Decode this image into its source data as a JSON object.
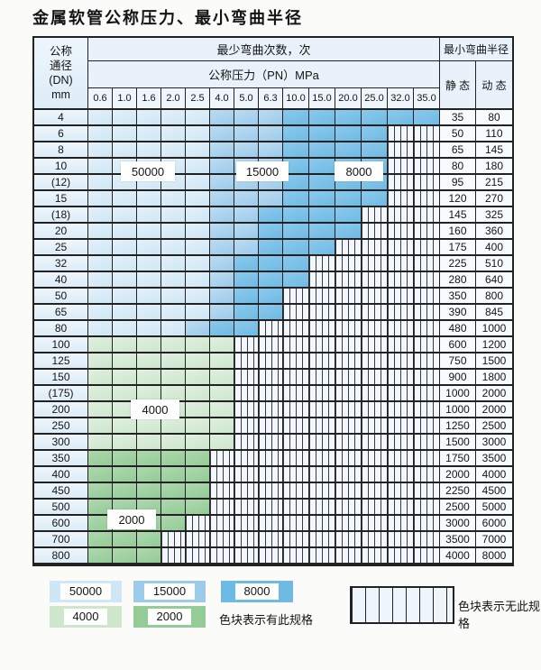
{
  "title": "金属软管公称压力、最小弯曲半径",
  "table": {
    "dn_header": [
      "公称",
      "通径",
      "(DN)",
      "mm"
    ],
    "bend_header": "最少弯曲次数，次",
    "pressure_header": "公称压力（PN）MPa",
    "radius_header": "最小弯曲半径",
    "static_label": "静 态",
    "dynamic_label": "动 态",
    "pressures": [
      "0.6",
      "1.0",
      "1.6",
      "2.0",
      "2.5",
      "4.0",
      "5.0",
      "6.3",
      "10.0",
      "15.0",
      "20.0",
      "25.0",
      "32.0",
      "35.0"
    ],
    "zone_order": [
      "50000",
      "15000",
      "8000",
      "4000",
      "2000"
    ],
    "rows": [
      {
        "dn": "4",
        "zones": [
          5,
          3,
          6,
          0,
          0
        ],
        "static": "35",
        "dynamic": "80"
      },
      {
        "dn": "6",
        "zones": [
          5,
          3,
          4,
          0,
          0
        ],
        "static": "50",
        "dynamic": "110"
      },
      {
        "dn": "8",
        "zones": [
          5,
          3,
          4,
          0,
          0
        ],
        "static": "65",
        "dynamic": "145"
      },
      {
        "dn": "10",
        "zones": [
          5,
          3,
          4,
          0,
          0
        ],
        "static": "80",
        "dynamic": "180"
      },
      {
        "dn": "(12)",
        "zones": [
          5,
          3,
          4,
          0,
          0
        ],
        "static": "95",
        "dynamic": "215"
      },
      {
        "dn": "15",
        "zones": [
          5,
          3,
          4,
          0,
          0
        ],
        "static": "120",
        "dynamic": "270"
      },
      {
        "dn": "(18)",
        "zones": [
          5,
          2,
          4,
          0,
          0
        ],
        "static": "145",
        "dynamic": "325"
      },
      {
        "dn": "20",
        "zones": [
          5,
          2,
          4,
          0,
          0
        ],
        "static": "160",
        "dynamic": "360"
      },
      {
        "dn": "25",
        "zones": [
          5,
          2,
          3,
          0,
          0
        ],
        "static": "175",
        "dynamic": "400"
      },
      {
        "dn": "32",
        "zones": [
          5,
          1,
          3,
          0,
          0
        ],
        "static": "225",
        "dynamic": "510"
      },
      {
        "dn": "40",
        "zones": [
          5,
          1,
          3,
          0,
          0
        ],
        "static": "280",
        "dynamic": "640"
      },
      {
        "dn": "50",
        "zones": [
          5,
          1,
          2,
          0,
          0
        ],
        "static": "350",
        "dynamic": "800"
      },
      {
        "dn": "65",
        "zones": [
          5,
          1,
          2,
          0,
          0
        ],
        "static": "390",
        "dynamic": "845"
      },
      {
        "dn": "80",
        "zones": [
          4,
          1,
          2,
          0,
          0
        ],
        "static": "480",
        "dynamic": "1000"
      },
      {
        "dn": "100",
        "zones": [
          0,
          0,
          0,
          6,
          0
        ],
        "static": "600",
        "dynamic": "1200"
      },
      {
        "dn": "125",
        "zones": [
          0,
          0,
          0,
          6,
          0
        ],
        "static": "750",
        "dynamic": "1500"
      },
      {
        "dn": "150",
        "zones": [
          0,
          0,
          0,
          6,
          0
        ],
        "static": "900",
        "dynamic": "1800"
      },
      {
        "dn": "(175)",
        "zones": [
          0,
          0,
          0,
          6,
          0
        ],
        "static": "1000",
        "dynamic": "2000"
      },
      {
        "dn": "200",
        "zones": [
          0,
          0,
          0,
          6,
          0
        ],
        "static": "1000",
        "dynamic": "2000"
      },
      {
        "dn": "250",
        "zones": [
          0,
          0,
          0,
          6,
          0
        ],
        "static": "1250",
        "dynamic": "2500"
      },
      {
        "dn": "300",
        "zones": [
          0,
          0,
          0,
          6,
          0
        ],
        "static": "1500",
        "dynamic": "3000"
      },
      {
        "dn": "350",
        "zones": [
          0,
          0,
          0,
          0,
          5
        ],
        "static": "1750",
        "dynamic": "3500"
      },
      {
        "dn": "400",
        "zones": [
          0,
          0,
          0,
          0,
          5
        ],
        "static": "2000",
        "dynamic": "4000"
      },
      {
        "dn": "450",
        "zones": [
          0,
          0,
          0,
          0,
          5
        ],
        "static": "2250",
        "dynamic": "4500"
      },
      {
        "dn": "500",
        "zones": [
          0,
          0,
          0,
          0,
          5
        ],
        "static": "2500",
        "dynamic": "5000"
      },
      {
        "dn": "600",
        "zones": [
          0,
          0,
          0,
          0,
          4
        ],
        "static": "3000",
        "dynamic": "6000"
      },
      {
        "dn": "700",
        "zones": [
          0,
          0,
          0,
          0,
          3
        ],
        "static": "3500",
        "dynamic": "7000"
      },
      {
        "dn": "800",
        "zones": [
          0,
          0,
          0,
          0,
          3
        ],
        "static": "4000",
        "dynamic": "8000"
      }
    ]
  },
  "overlay": {
    "b50000": "50000",
    "b15000": "15000",
    "b8000": "8000",
    "b4000": "4000",
    "b2000": "2000"
  },
  "legend": {
    "items": [
      {
        "label": "50000"
      },
      {
        "label": "15000"
      },
      {
        "label": "8000"
      },
      {
        "label": "4000"
      },
      {
        "label": "2000"
      }
    ],
    "has_spec_note": "色块表示有此规格",
    "no_spec_note": "色块表示无此规格"
  },
  "colors": {
    "zone_50000": "#cfe6f4",
    "zone_15000": "#9ccbea",
    "zone_8000": "#6fbae4",
    "zone_4000": "#cde6cc",
    "zone_2000": "#94cb97",
    "no_spec_bg": "#f1f7fc",
    "grid_line": "#222222",
    "header_bg": "#e9f2fa"
  }
}
